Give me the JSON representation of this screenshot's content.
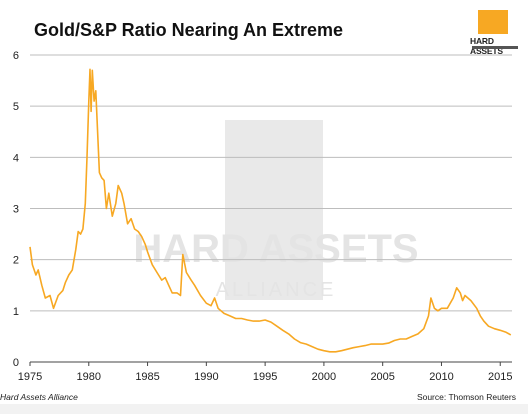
{
  "chart_data": {
    "type": "line",
    "title": "Gold/S&P Ratio Nearing An Extreme",
    "xlabel": "",
    "ylabel": "",
    "xlim": [
      1975,
      2016
    ],
    "ylim": [
      0,
      6
    ],
    "xticks": [
      1975,
      1980,
      1985,
      1990,
      1995,
      2000,
      2005,
      2010,
      2015
    ],
    "yticks": [
      0,
      1,
      2,
      3,
      4,
      5,
      6
    ],
    "grid": "horizontal",
    "series": [
      {
        "color": "#f7a823",
        "x": [
          1975.0,
          1975.2,
          1975.5,
          1975.7,
          1976.0,
          1976.3,
          1976.7,
          1977.0,
          1977.4,
          1977.8,
          1978.0,
          1978.3,
          1978.6,
          1978.9,
          1979.1,
          1979.3,
          1979.5,
          1979.7,
          1979.85,
          1980.0,
          1980.1,
          1980.2,
          1980.3,
          1980.45,
          1980.6,
          1980.75,
          1980.9,
          1981.1,
          1981.3,
          1981.5,
          1981.7,
          1982.0,
          1982.3,
          1982.5,
          1982.8,
          1983.0,
          1983.3,
          1983.6,
          1983.9,
          1984.2,
          1984.5,
          1984.8,
          1985.0,
          1985.4,
          1985.8,
          1986.2,
          1986.5,
          1986.8,
          1987.1,
          1987.5,
          1987.8,
          1988.0,
          1988.3,
          1988.7,
          1989.0,
          1989.5,
          1990.0,
          1990.4,
          1990.7,
          1991.0,
          1991.5,
          1992.0,
          1992.5,
          1993.0,
          1993.5,
          1994.0,
          1994.5,
          1995.0,
          1995.5,
          1996.0,
          1996.5,
          1997.0,
          1997.5,
          1998.0,
          1998.5,
          1999.0,
          1999.5,
          2000.0,
          2000.5,
          2001.0,
          2001.5,
          2002.0,
          2002.5,
          2003.0,
          2003.5,
          2004.0,
          2004.5,
          2005.0,
          2005.5,
          2006.0,
          2006.5,
          2007.0,
          2007.5,
          2008.0,
          2008.5,
          2008.9,
          2009.1,
          2009.4,
          2009.7,
          2010.0,
          2010.5,
          2011.0,
          2011.3,
          2011.6,
          2011.8,
          2012.0,
          2012.5,
          2013.0,
          2013.3,
          2013.6,
          2014.0,
          2014.5,
          2015.0,
          2015.5,
          2015.9
        ],
        "y": [
          2.25,
          1.9,
          1.7,
          1.8,
          1.5,
          1.25,
          1.3,
          1.05,
          1.3,
          1.4,
          1.55,
          1.7,
          1.8,
          2.2,
          2.55,
          2.5,
          2.6,
          3.1,
          4.0,
          5.1,
          5.72,
          4.9,
          5.7,
          5.1,
          5.3,
          4.5,
          3.7,
          3.6,
          3.55,
          3.0,
          3.3,
          2.85,
          3.1,
          3.45,
          3.3,
          3.1,
          2.7,
          2.8,
          2.6,
          2.55,
          2.45,
          2.3,
          2.15,
          1.9,
          1.75,
          1.6,
          1.65,
          1.5,
          1.35,
          1.35,
          1.3,
          2.1,
          1.75,
          1.6,
          1.5,
          1.3,
          1.15,
          1.1,
          1.25,
          1.05,
          0.95,
          0.9,
          0.85,
          0.85,
          0.82,
          0.8,
          0.8,
          0.82,
          0.78,
          0.7,
          0.62,
          0.55,
          0.45,
          0.38,
          0.35,
          0.3,
          0.25,
          0.22,
          0.2,
          0.2,
          0.22,
          0.25,
          0.28,
          0.3,
          0.32,
          0.35,
          0.35,
          0.35,
          0.37,
          0.42,
          0.45,
          0.45,
          0.5,
          0.55,
          0.65,
          0.9,
          1.25,
          1.05,
          1.0,
          1.05,
          1.05,
          1.25,
          1.45,
          1.35,
          1.2,
          1.3,
          1.2,
          1.05,
          0.9,
          0.8,
          0.7,
          0.65,
          0.62,
          0.58,
          0.53
        ]
      }
    ]
  },
  "watermark": {
    "word": "HARD ASSETS",
    "sub": "ALLIANCE"
  },
  "logo": {
    "word": "HARD ASSETS"
  },
  "footer": {
    "left": "Hard Assets Alliance",
    "right": "Source: Thomson Reuters"
  },
  "colors": {
    "line": "#f7a823",
    "grid": "#bdbdbd",
    "watermark": "#e9e9e9"
  }
}
